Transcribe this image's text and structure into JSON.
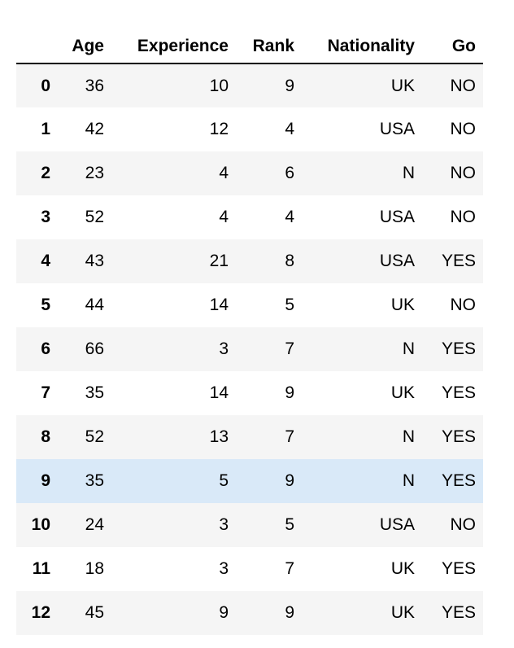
{
  "table": {
    "index_header": "",
    "columns": [
      "Age",
      "Experience",
      "Rank",
      "Nationality",
      "Go"
    ],
    "rows": [
      {
        "index": "0",
        "values": [
          "36",
          "10",
          "9",
          "UK",
          "NO"
        ],
        "highlighted": false
      },
      {
        "index": "1",
        "values": [
          "42",
          "12",
          "4",
          "USA",
          "NO"
        ],
        "highlighted": false
      },
      {
        "index": "2",
        "values": [
          "23",
          "4",
          "6",
          "N",
          "NO"
        ],
        "highlighted": false
      },
      {
        "index": "3",
        "values": [
          "52",
          "4",
          "4",
          "USA",
          "NO"
        ],
        "highlighted": false
      },
      {
        "index": "4",
        "values": [
          "43",
          "21",
          "8",
          "USA",
          "YES"
        ],
        "highlighted": false
      },
      {
        "index": "5",
        "values": [
          "44",
          "14",
          "5",
          "UK",
          "NO"
        ],
        "highlighted": false
      },
      {
        "index": "6",
        "values": [
          "66",
          "3",
          "7",
          "N",
          "YES"
        ],
        "highlighted": false
      },
      {
        "index": "7",
        "values": [
          "35",
          "14",
          "9",
          "UK",
          "YES"
        ],
        "highlighted": false
      },
      {
        "index": "8",
        "values": [
          "52",
          "13",
          "7",
          "N",
          "YES"
        ],
        "highlighted": false
      },
      {
        "index": "9",
        "values": [
          "35",
          "5",
          "9",
          "N",
          "YES"
        ],
        "highlighted": true
      },
      {
        "index": "10",
        "values": [
          "24",
          "3",
          "5",
          "USA",
          "NO"
        ],
        "highlighted": false
      },
      {
        "index": "11",
        "values": [
          "18",
          "3",
          "7",
          "UK",
          "YES"
        ],
        "highlighted": false
      },
      {
        "index": "12",
        "values": [
          "45",
          "9",
          "9",
          "UK",
          "YES"
        ],
        "highlighted": false
      }
    ]
  },
  "chart_data": {
    "type": "table",
    "title": "",
    "columns": [
      "",
      "Age",
      "Experience",
      "Rank",
      "Nationality",
      "Go"
    ],
    "rows": [
      [
        0,
        36,
        10,
        9,
        "UK",
        "NO"
      ],
      [
        1,
        42,
        12,
        4,
        "USA",
        "NO"
      ],
      [
        2,
        23,
        4,
        6,
        "N",
        "NO"
      ],
      [
        3,
        52,
        4,
        4,
        "USA",
        "NO"
      ],
      [
        4,
        43,
        21,
        8,
        "USA",
        "YES"
      ],
      [
        5,
        44,
        14,
        5,
        "UK",
        "NO"
      ],
      [
        6,
        66,
        3,
        7,
        "N",
        "YES"
      ],
      [
        7,
        35,
        14,
        9,
        "UK",
        "YES"
      ],
      [
        8,
        52,
        13,
        7,
        "N",
        "YES"
      ],
      [
        9,
        35,
        5,
        9,
        "N",
        "YES"
      ],
      [
        10,
        24,
        3,
        5,
        "USA",
        "NO"
      ],
      [
        11,
        18,
        3,
        7,
        "UK",
        "YES"
      ],
      [
        12,
        45,
        9,
        9,
        "UK",
        "YES"
      ]
    ],
    "highlighted_row_index": 9,
    "layout": {
      "striped_rows": "even",
      "header_separator": "2px solid black",
      "alignment": "right"
    }
  },
  "colors": {
    "row_stripe": "#f5f5f5",
    "row_highlight": "#d9e9f8",
    "header_border": "#000000",
    "text": "#000000",
    "background": "#ffffff"
  }
}
